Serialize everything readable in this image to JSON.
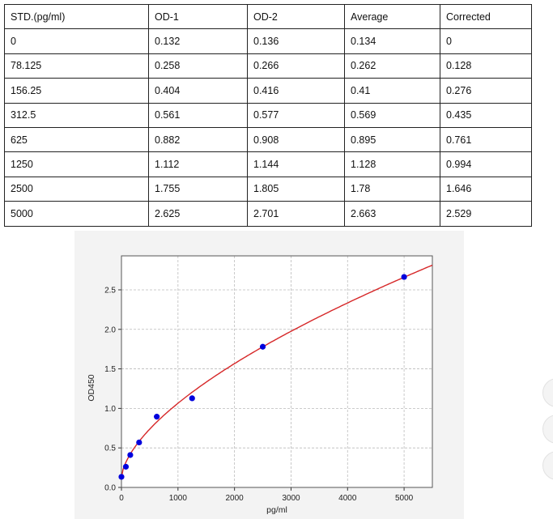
{
  "table": {
    "headers": [
      "STD.(pg/ml)",
      "OD-1",
      "OD-2",
      "Average",
      "Corrected"
    ],
    "rows": [
      [
        "0",
        "0.132",
        "0.136",
        "0.134",
        "0"
      ],
      [
        "78.125",
        "0.258",
        "0.266",
        "0.262",
        "0.128"
      ],
      [
        "156.25",
        "0.404",
        "0.416",
        "0.41",
        "0.276"
      ],
      [
        "312.5",
        "0.561",
        "0.577",
        "0.569",
        "0.435"
      ],
      [
        "625",
        "0.882",
        "0.908",
        "0.895",
        "0.761"
      ],
      [
        "1250",
        "1.112",
        "1.144",
        "1.128",
        "0.994"
      ],
      [
        "2500",
        "1.755",
        "1.805",
        "1.78",
        "1.646"
      ],
      [
        "5000",
        "2.625",
        "2.701",
        "2.663",
        "2.529"
      ]
    ]
  },
  "chart_data": {
    "type": "scatter",
    "xlabel": "pg/ml",
    "ylabel": "OD450",
    "xlim": [
      0,
      5500
    ],
    "ylim": [
      0,
      2.93
    ],
    "xticks": [
      "0",
      "1000",
      "2000",
      "3000",
      "4000",
      "5000"
    ],
    "yticks": [
      "0.0",
      "0.5",
      "1.0",
      "1.5",
      "2.0",
      "2.5"
    ],
    "grid": true,
    "points": {
      "x": [
        0,
        78.125,
        156.25,
        312.5,
        625,
        1250,
        2500,
        5000
      ],
      "y": [
        0.134,
        0.262,
        0.41,
        0.569,
        0.895,
        1.128,
        1.78,
        2.663
      ]
    },
    "fit_curve": true,
    "colors": {
      "points": "#0000dd",
      "curve": "#d62728"
    }
  }
}
